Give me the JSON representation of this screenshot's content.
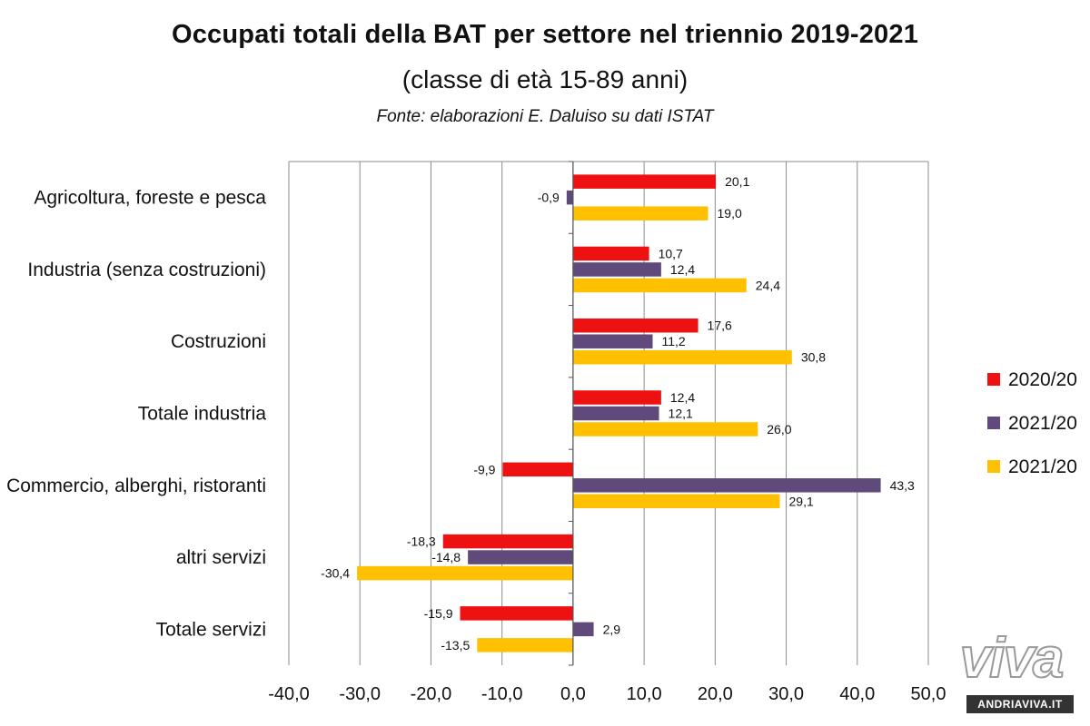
{
  "chart_data": {
    "type": "bar",
    "orientation": "horizontal",
    "title": "Occupati totali della BAT per settore nel triennio 2019-2021",
    "subtitle": "(classe di età 15-89 anni)",
    "source": "Fonte: elaborazioni E. Daluiso su dati ISTAT",
    "categories": [
      "Agricoltura, foreste e pesca",
      "Industria (senza costruzioni)",
      "Costruzioni",
      "Totale industria",
      "Commercio, alberghi, ristoranti",
      "altri servizi",
      "Totale servizi"
    ],
    "series": [
      {
        "name": "2020/20",
        "color": "#ee1111",
        "values": [
          20.1,
          10.7,
          17.6,
          12.4,
          -9.9,
          -18.3,
          -15.9
        ],
        "labels": [
          "20,1",
          "10,7",
          "17,6",
          "12,4",
          "-9,9",
          "-18,3",
          "-15,9"
        ]
      },
      {
        "name": "2021/20",
        "color": "#604a7b",
        "values": [
          -0.9,
          12.4,
          11.2,
          12.1,
          43.3,
          -14.8,
          2.9
        ],
        "labels": [
          "-0,9",
          "12,4",
          "11,2",
          "12,1",
          "43,3",
          "-14,8",
          "2,9"
        ]
      },
      {
        "name": "2021/20",
        "color": "#ffc000",
        "values": [
          19.0,
          24.4,
          30.8,
          26.0,
          29.1,
          -30.4,
          -13.5
        ],
        "labels": [
          "19,0",
          "24,4",
          "30,8",
          "26,0",
          "29,1",
          "-30,4",
          "-13,5"
        ]
      }
    ],
    "xlim": [
      -40,
      50
    ],
    "ticks": [
      "-40,0",
      "-30,0",
      "-20,0",
      "-10,0",
      "0,0",
      "10,0",
      "20,0",
      "30,0",
      "40,0",
      "50,0"
    ],
    "grid": true,
    "legend": "right"
  },
  "watermark": {
    "logo": "viva",
    "site": "ANDRIAVIVA.IT"
  }
}
